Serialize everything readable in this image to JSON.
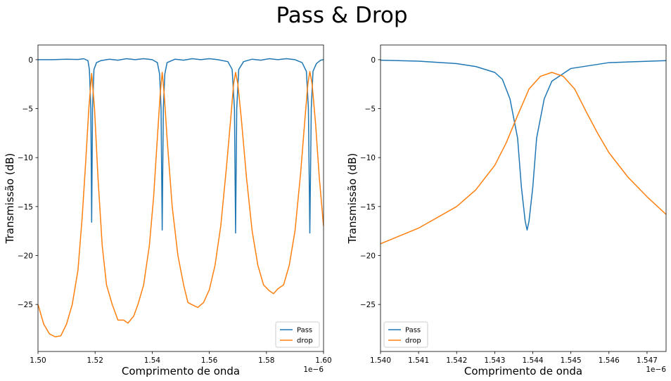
{
  "figure": {
    "title": "Pass & Drop"
  },
  "chart_data": [
    {
      "type": "line",
      "xlabel": "Comprimento de onda",
      "ylabel": "Transmissão (dB)",
      "x_offset_label": "1e−6",
      "xlim": [
        1.5,
        1.6
      ],
      "ylim": [
        -29.8,
        1.5
      ],
      "xticks": [
        1.5,
        1.52,
        1.54,
        1.56,
        1.58,
        1.6
      ],
      "xtick_labels": [
        "1.50",
        "1.52",
        "1.54",
        "1.56",
        "1.58",
        "1.60"
      ],
      "yticks": [
        0,
        -5,
        -10,
        -15,
        -20,
        -25
      ],
      "ytick_labels": [
        "0",
        "−5",
        "−10",
        "−15",
        "−20",
        "−25"
      ],
      "grid": false,
      "legend_position": "lower-right",
      "series": [
        {
          "name": "Pass",
          "color": "#1f77b4",
          "points": [
            [
              1.5,
              0
            ],
            [
              1.505,
              0
            ],
            [
              1.51,
              0.05
            ],
            [
              1.514,
              0.02
            ],
            [
              1.516,
              0.1
            ],
            [
              1.5175,
              -0.1
            ],
            [
              1.518,
              -1.0
            ],
            [
              1.5185,
              -5.0
            ],
            [
              1.5188,
              -16.6
            ],
            [
              1.5191,
              -5.0
            ],
            [
              1.5196,
              -1.0
            ],
            [
              1.5205,
              -0.3
            ],
            [
              1.522,
              -0.1
            ],
            [
              1.525,
              0.05
            ],
            [
              1.528,
              -0.05
            ],
            [
              1.531,
              0.1
            ],
            [
              1.534,
              0.0
            ],
            [
              1.537,
              0.1
            ],
            [
              1.54,
              0.0
            ],
            [
              1.5418,
              -0.3
            ],
            [
              1.5426,
              -1.5
            ],
            [
              1.5431,
              -5.0
            ],
            [
              1.5435,
              -17.4
            ],
            [
              1.5439,
              -5.0
            ],
            [
              1.5444,
              -1.5
            ],
            [
              1.5452,
              -0.3
            ],
            [
              1.548,
              0.05
            ],
            [
              1.551,
              -0.05
            ],
            [
              1.554,
              0.1
            ],
            [
              1.557,
              0.0
            ],
            [
              1.56,
              0.1
            ],
            [
              1.563,
              0.0
            ],
            [
              1.5665,
              -0.2
            ],
            [
              1.568,
              -1.0
            ],
            [
              1.5688,
              -5.0
            ],
            [
              1.5692,
              -17.7
            ],
            [
              1.5696,
              -5.0
            ],
            [
              1.5703,
              -1.0
            ],
            [
              1.572,
              -0.2
            ],
            [
              1.575,
              0.05
            ],
            [
              1.578,
              -0.05
            ],
            [
              1.581,
              0.1
            ],
            [
              1.584,
              0.0
            ],
            [
              1.587,
              0.1
            ],
            [
              1.59,
              0.0
            ],
            [
              1.5925,
              -0.3
            ],
            [
              1.594,
              -1.2
            ],
            [
              1.5947,
              -5.0
            ],
            [
              1.5952,
              -17.7
            ],
            [
              1.5957,
              -5.0
            ],
            [
              1.5963,
              -1.2
            ],
            [
              1.5975,
              -0.4
            ],
            [
              1.599,
              -0.05
            ],
            [
              1.6,
              0
            ]
          ]
        },
        {
          "name": "drop",
          "color": "#ff7f0e",
          "points": [
            [
              1.5,
              -25.0
            ],
            [
              1.502,
              -27.0
            ],
            [
              1.504,
              -28.0
            ],
            [
              1.506,
              -28.3
            ],
            [
              1.508,
              -28.2
            ],
            [
              1.51,
              -27.0
            ],
            [
              1.512,
              -25.0
            ],
            [
              1.514,
              -21.5
            ],
            [
              1.5155,
              -16.0
            ],
            [
              1.5168,
              -10.0
            ],
            [
              1.5178,
              -5.0
            ],
            [
              1.5188,
              -1.4
            ],
            [
              1.5198,
              -5.0
            ],
            [
              1.521,
              -12.0
            ],
            [
              1.5225,
              -19.0
            ],
            [
              1.524,
              -23.0
            ],
            [
              1.526,
              -25.0
            ],
            [
              1.528,
              -26.6
            ],
            [
              1.53,
              -26.6
            ],
            [
              1.5315,
              -26.9
            ],
            [
              1.5335,
              -26.2
            ],
            [
              1.535,
              -25.0
            ],
            [
              1.537,
              -23.0
            ],
            [
              1.539,
              -19.0
            ],
            [
              1.5405,
              -14.0
            ],
            [
              1.5418,
              -8.0
            ],
            [
              1.5428,
              -3.5
            ],
            [
              1.5435,
              -1.3
            ],
            [
              1.5442,
              -3.5
            ],
            [
              1.5452,
              -8.0
            ],
            [
              1.547,
              -15.0
            ],
            [
              1.549,
              -20.0
            ],
            [
              1.551,
              -23.0
            ],
            [
              1.5525,
              -24.8
            ],
            [
              1.5545,
              -25.1
            ],
            [
              1.556,
              -25.3
            ],
            [
              1.558,
              -24.8
            ],
            [
              1.56,
              -23.5
            ],
            [
              1.562,
              -21.0
            ],
            [
              1.564,
              -17.0
            ],
            [
              1.566,
              -11.0
            ],
            [
              1.5675,
              -6.0
            ],
            [
              1.5685,
              -2.5
            ],
            [
              1.5692,
              -1.3
            ],
            [
              1.57,
              -2.5
            ],
            [
              1.5712,
              -6.0
            ],
            [
              1.573,
              -12.0
            ],
            [
              1.575,
              -17.5
            ],
            [
              1.577,
              -21.0
            ],
            [
              1.579,
              -23.0
            ],
            [
              1.581,
              -23.6
            ],
            [
              1.5825,
              -23.9
            ],
            [
              1.584,
              -23.4
            ],
            [
              1.586,
              -23.0
            ],
            [
              1.588,
              -21.0
            ],
            [
              1.59,
              -17.5
            ],
            [
              1.592,
              -11.5
            ],
            [
              1.5935,
              -6.0
            ],
            [
              1.5945,
              -2.5
            ],
            [
              1.5952,
              -1.2
            ],
            [
              1.596,
              -2.5
            ],
            [
              1.5972,
              -6.5
            ],
            [
              1.5985,
              -12.0
            ],
            [
              1.6,
              -17.0
            ]
          ]
        }
      ]
    },
    {
      "type": "line",
      "xlabel": "Comprimento de onda",
      "ylabel": "Transmissão (dB)",
      "x_offset_label": "1e−6",
      "xlim": [
        1.54,
        1.5475
      ],
      "ylim": [
        -29.8,
        1.5
      ],
      "xticks": [
        1.54,
        1.541,
        1.542,
        1.543,
        1.544,
        1.545,
        1.546,
        1.547
      ],
      "xtick_labels": [
        "1.540",
        "1.541",
        "1.542",
        "1.543",
        "1.544",
        "1.545",
        "1.546",
        "1.547"
      ],
      "yticks": [
        0,
        -5,
        -10,
        -15,
        -20,
        -25
      ],
      "ytick_labels": [
        "0",
        "−5",
        "−10",
        "−15",
        "−20",
        "−25"
      ],
      "grid": false,
      "legend_position": "lower-left",
      "series": [
        {
          "name": "Pass",
          "color": "#1f77b4",
          "points": [
            [
              1.54,
              -0.05
            ],
            [
              1.541,
              -0.15
            ],
            [
              1.542,
              -0.4
            ],
            [
              1.5425,
              -0.7
            ],
            [
              1.543,
              -1.3
            ],
            [
              1.5432,
              -2.0
            ],
            [
              1.5434,
              -4.0
            ],
            [
              1.5436,
              -8.0
            ],
            [
              1.5437,
              -13.0
            ],
            [
              1.5438,
              -16.5
            ],
            [
              1.54385,
              -17.4
            ],
            [
              1.5439,
              -16.5
            ],
            [
              1.544,
              -13.0
            ],
            [
              1.5441,
              -8.0
            ],
            [
              1.5443,
              -4.0
            ],
            [
              1.5445,
              -2.2
            ],
            [
              1.545,
              -0.9
            ],
            [
              1.546,
              -0.3
            ],
            [
              1.5475,
              -0.1
            ]
          ]
        },
        {
          "name": "drop",
          "color": "#ff7f0e",
          "points": [
            [
              1.54,
              -18.8
            ],
            [
              1.541,
              -17.2
            ],
            [
              1.542,
              -15.0
            ],
            [
              1.5425,
              -13.3
            ],
            [
              1.543,
              -10.8
            ],
            [
              1.5433,
              -8.5
            ],
            [
              1.5436,
              -5.7
            ],
            [
              1.5439,
              -3.0
            ],
            [
              1.5442,
              -1.7
            ],
            [
              1.5445,
              -1.3
            ],
            [
              1.5448,
              -1.7
            ],
            [
              1.5451,
              -3.0
            ],
            [
              1.5454,
              -5.3
            ],
            [
              1.5457,
              -7.5
            ],
            [
              1.546,
              -9.5
            ],
            [
              1.5465,
              -12.0
            ],
            [
              1.547,
              -14.0
            ],
            [
              1.5475,
              -15.8
            ]
          ]
        }
      ]
    }
  ]
}
